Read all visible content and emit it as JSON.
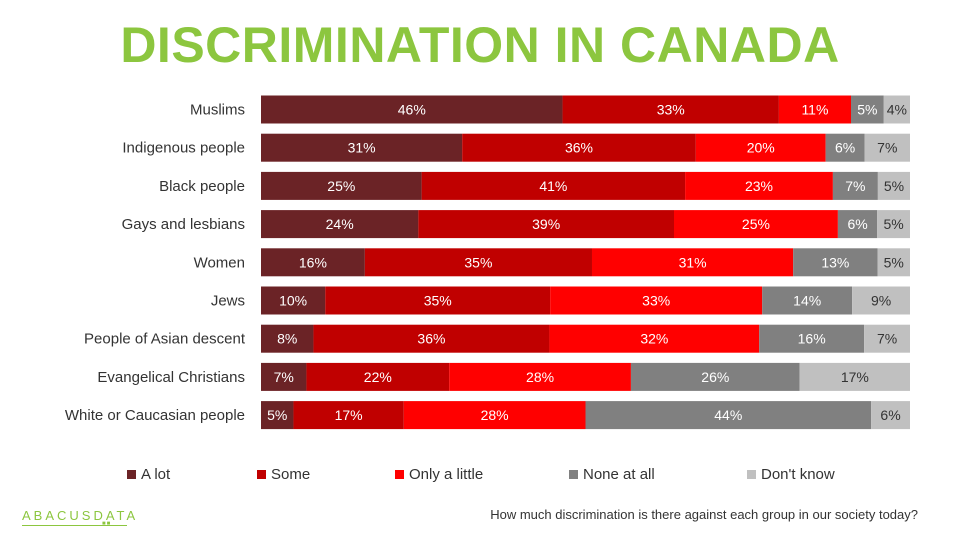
{
  "title": "DISCRIMINATION IN CANADA",
  "question": "How much discrimination is there against each group in our society today?",
  "logo": {
    "text": "ABACUSDATA"
  },
  "colors": {
    "title": "#8cc63f",
    "a_lot": "#6b2326",
    "some": "#c00000",
    "only_a_little": "#ff0000",
    "none_at_all": "#808080",
    "dont_know": "#c0c0c0"
  },
  "legend": [
    {
      "label": "A lot",
      "color": "#6b2326"
    },
    {
      "label": "Some",
      "color": "#c00000"
    },
    {
      "label": "Only a little",
      "color": "#ff0000"
    },
    {
      "label": "None at all",
      "color": "#808080"
    },
    {
      "label": "Don't know",
      "color": "#c0c0c0"
    }
  ],
  "chart_data": {
    "type": "bar",
    "orientation": "horizontal",
    "stacked": true,
    "title": "DISCRIMINATION IN CANADA",
    "categories": [
      "Muslims",
      "Indigenous people",
      "Black people",
      "Gays and lesbians",
      "Women",
      "Jews",
      "People of Asian descent",
      "Evangelical Christians",
      "White or Caucasian people"
    ],
    "series": [
      {
        "name": "A lot",
        "color": "#6b2326",
        "values": [
          46,
          31,
          25,
          24,
          16,
          10,
          8,
          7,
          5
        ]
      },
      {
        "name": "Some",
        "color": "#c00000",
        "values": [
          33,
          36,
          41,
          39,
          35,
          35,
          36,
          22,
          17
        ]
      },
      {
        "name": "Only a little",
        "color": "#ff0000",
        "values": [
          11,
          20,
          23,
          25,
          31,
          33,
          32,
          28,
          28
        ]
      },
      {
        "name": "None at all",
        "color": "#808080",
        "values": [
          5,
          6,
          7,
          6,
          13,
          14,
          16,
          26,
          44
        ]
      },
      {
        "name": "Don't know",
        "color": "#c0c0c0",
        "values": [
          4,
          7,
          5,
          5,
          5,
          9,
          7,
          17,
          6
        ]
      }
    ],
    "value_suffix": "%",
    "legend_position": "bottom",
    "grid": false
  }
}
